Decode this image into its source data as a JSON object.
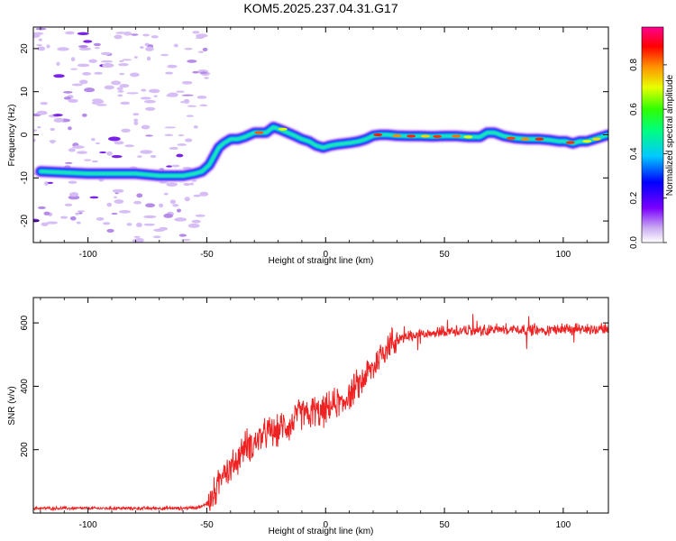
{
  "title": "KOM5.2025.237.04.31.G17",
  "colors": {
    "snr_line": "#ee2222",
    "colormap": [
      "#ffffff",
      "#8800ff",
      "#0000ff",
      "#00e5ff",
      "#00ff00",
      "#ffff00",
      "#ff8800",
      "#ff0000",
      "#ff00aa"
    ]
  },
  "chart_data": [
    {
      "type": "heatmap",
      "title": "KOM5.2025.237.04.31.G17",
      "xlabel": "Height of straight line (km)",
      "ylabel": "Frequency (Hz)",
      "xlim": [
        -123,
        119
      ],
      "ylim": [
        -25,
        25
      ],
      "xticks": [
        -100,
        -50,
        0,
        50,
        100
      ],
      "yticks": [
        -20,
        -10,
        0,
        10,
        20
      ],
      "colorbar": {
        "label": "Normalized spectral amplitude",
        "range": [
          0,
          0.97
        ],
        "ticks": [
          "0.0",
          "0.2",
          "0.4",
          "0.6",
          "0.8"
        ]
      },
      "ridge": {
        "x": [
          -120,
          -100,
          -80,
          -70,
          -60,
          -55,
          -52,
          -49,
          -47,
          -45,
          -43,
          -40,
          -37,
          -34,
          -30,
          -25,
          -22,
          -19,
          -16,
          -13,
          -10,
          -7,
          -4,
          -1,
          2,
          5,
          8,
          11,
          14,
          17,
          20,
          23,
          26,
          30,
          35,
          40,
          45,
          50,
          55,
          60,
          65,
          68,
          71,
          75,
          80,
          85,
          90,
          94,
          98,
          101,
          104,
          107,
          110,
          113,
          116,
          119
        ],
        "y": [
          -8.5,
          -9,
          -9,
          -9.5,
          -9.5,
          -9,
          -8.5,
          -7,
          -5,
          -3,
          -2,
          -1,
          -1,
          -0.5,
          0.5,
          0.5,
          1.8,
          1.2,
          0.5,
          -0.2,
          -1,
          -1.5,
          -2.5,
          -3,
          -2.5,
          -2.2,
          -2,
          -1.8,
          -1.5,
          -1,
          -0.2,
          0,
          0,
          -0.2,
          -0.3,
          -0.3,
          -0.4,
          -0.3,
          -0.3,
          -0.5,
          -0.5,
          0.5,
          0.5,
          -0.3,
          -0.8,
          -1,
          -1,
          -1.2,
          -1.5,
          -1.5,
          -2,
          -1.5,
          -1.5,
          -1,
          -0.5,
          0
        ]
      },
      "noise_region_x": [
        -123,
        -50
      ]
    },
    {
      "type": "line",
      "xlabel": "Height of straight line (km)",
      "ylabel": "SNR (v/v)",
      "xlim": [
        -123,
        119
      ],
      "ylim": [
        0,
        680
      ],
      "xticks": [
        -100,
        -50,
        0,
        50,
        100
      ],
      "yticks": [
        200,
        400,
        600
      ],
      "series": [
        {
          "name": "SNR",
          "x": [
            -123,
            -100,
            -80,
            -60,
            -52,
            -48,
            -45,
            -43,
            -41,
            -39,
            -37,
            -35,
            -33,
            -31,
            -29,
            -27,
            -25,
            -23,
            -21,
            -19,
            -17,
            -15,
            -13,
            -11,
            -9,
            -7,
            -5,
            -3,
            -1,
            1,
            3,
            5,
            7,
            9,
            11,
            13,
            15,
            17,
            19,
            21,
            23,
            25,
            28,
            32,
            36,
            40,
            45,
            50,
            55,
            60,
            65,
            70,
            80,
            90,
            100,
            110,
            119
          ],
          "y": [
            15,
            15,
            15,
            15,
            20,
            45,
            90,
            150,
            130,
            150,
            170,
            200,
            220,
            210,
            230,
            240,
            250,
            260,
            250,
            270,
            280,
            270,
            300,
            310,
            320,
            300,
            330,
            310,
            320,
            330,
            340,
            350,
            340,
            370,
            380,
            400,
            410,
            440,
            450,
            470,
            500,
            520,
            540,
            550,
            560,
            565,
            570,
            575,
            575,
            575,
            575,
            580,
            580,
            575,
            580,
            580,
            580
          ]
        }
      ]
    }
  ]
}
